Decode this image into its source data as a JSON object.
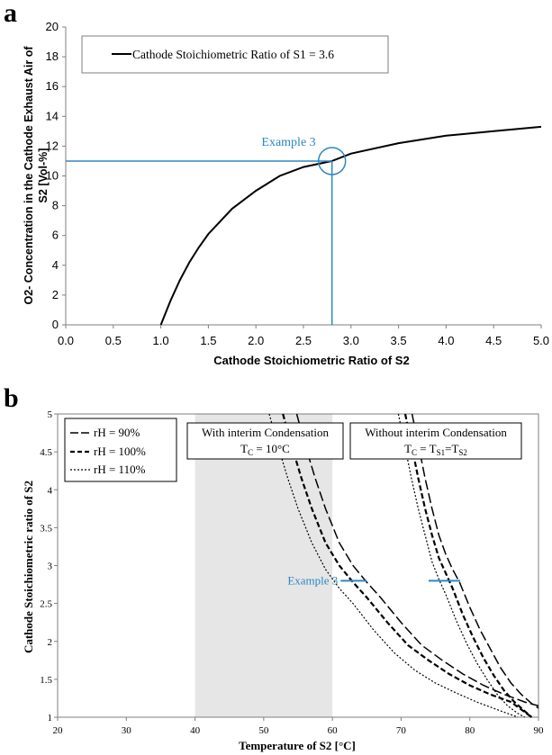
{
  "colors": {
    "curve": "#000000",
    "annotation": "#2e86c1",
    "shade": "#e6e6e6",
    "axis": "#7f7f7f"
  },
  "chart_data": [
    {
      "panel_letter": "a",
      "type": "line",
      "xlabel": "Cathode Stoichiometric Ratio of S2",
      "ylabel_lines": [
        "O2- Concentration in the Cathode Exhaust Air of",
        "S2 [Vol-%]"
      ],
      "xlim": [
        0,
        5
      ],
      "ylim": [
        0,
        20
      ],
      "xticks": [
        0,
        0.5,
        1,
        1.5,
        2,
        2.5,
        3,
        3.5,
        4,
        4.5,
        5
      ],
      "xtick_labels": [
        "0.0",
        "0.5",
        "1.0",
        "1.5",
        "2.0",
        "2.5",
        "3.0",
        "3.5",
        "4.0",
        "4.5",
        "5.0"
      ],
      "yticks": [
        0,
        2,
        4,
        6,
        8,
        10,
        12,
        14,
        16,
        18,
        20
      ],
      "ytick_labels": [
        "0",
        "2",
        "4",
        "6",
        "8",
        "10",
        "12",
        "14",
        "16",
        "18",
        "20"
      ],
      "grid": false,
      "legend_position": "top-left",
      "series": [
        {
          "name": "Cathode Stoichiometric Ratio of S1 = 3.6",
          "style": "solid",
          "x": [
            1.0,
            1.1,
            1.2,
            1.3,
            1.4,
            1.5,
            1.75,
            2.0,
            2.25,
            2.5,
            2.8,
            3.0,
            3.5,
            4.0,
            4.5,
            5.0
          ],
          "y": [
            0.0,
            1.6,
            3.0,
            4.2,
            5.2,
            6.1,
            7.8,
            9.0,
            10.0,
            10.6,
            11.0,
            11.5,
            12.2,
            12.7,
            13.0,
            13.3
          ]
        }
      ],
      "annotation": {
        "label": "Example 3",
        "x": 2.8,
        "y": 11.0
      }
    },
    {
      "panel_letter": "b",
      "type": "line",
      "xlabel": "Temperature of S2 [°C]",
      "ylabel": "Cathode Stoichiometric ratio of S2",
      "xlim": [
        20,
        90
      ],
      "ylim": [
        1,
        5
      ],
      "xticks": [
        20,
        30,
        40,
        50,
        60,
        70,
        80,
        90
      ],
      "xtick_labels": [
        "20",
        "30",
        "40",
        "50",
        "60",
        "70",
        "80",
        "90"
      ],
      "yticks": [
        1,
        1.5,
        2,
        2.5,
        3,
        3.5,
        4,
        4.5,
        5
      ],
      "ytick_labels": [
        "1",
        "1.5",
        "2",
        "2.5",
        "3",
        "3.5",
        "4",
        "4.5",
        "5"
      ],
      "grid": false,
      "legend_position": "top-left",
      "shaded_region": {
        "x": [
          40,
          60
        ]
      },
      "boxes": [
        {
          "line1": "With interim Condensation",
          "line2_main": "T",
          "line2_sub": "C",
          "line2_rest": " = 10°C"
        },
        {
          "line1": "Without interim Condensation",
          "line2_parts": [
            [
              "T",
              "C"
            ],
            [
              " = T",
              "S1"
            ],
            [
              "=T",
              "S2"
            ]
          ]
        }
      ],
      "series": [
        {
          "name": "rH = 90%",
          "style": "long-dash",
          "x": [
            54.8,
            56.0,
            57.5,
            59.0,
            61.0,
            63.0,
            65.0,
            67.0,
            70.0,
            73.0,
            76.0,
            79.0,
            82.0,
            85.0,
            88.0,
            90.0
          ],
          "y": [
            5.0,
            4.6,
            4.15,
            3.75,
            3.3,
            3.0,
            2.78,
            2.58,
            2.25,
            1.95,
            1.75,
            1.57,
            1.42,
            1.3,
            1.2,
            1.15
          ]
        },
        {
          "name": "rH = 100%",
          "style": "dash",
          "x": [
            52.8,
            54.0,
            55.5,
            57.0,
            59.0,
            61.0,
            63.0,
            65.0,
            68.0,
            71.0,
            74.0,
            77.0,
            80.0,
            83.0,
            86.0,
            89.0
          ],
          "y": [
            5.0,
            4.6,
            4.15,
            3.75,
            3.3,
            3.0,
            2.78,
            2.58,
            2.25,
            1.95,
            1.75,
            1.57,
            1.42,
            1.3,
            1.2,
            1.0
          ]
        },
        {
          "name": "rH = 110%",
          "style": "dot",
          "x": [
            50.8,
            52.0,
            53.5,
            55.0,
            57.0,
            59.0,
            61.0,
            63.0,
            66.0,
            69.0,
            72.0,
            75.0,
            78.0,
            81.0,
            84.0,
            87.0
          ],
          "y": [
            5.0,
            4.6,
            4.15,
            3.75,
            3.3,
            2.95,
            2.7,
            2.5,
            2.15,
            1.85,
            1.62,
            1.45,
            1.32,
            1.2,
            1.1,
            1.0
          ]
        },
        {
          "name": "",
          "style": "long-dash",
          "x": [
            71.6,
            72.5,
            73.5,
            74.5,
            75.5,
            76.5,
            77.5,
            78.5,
            80.0,
            81.5,
            83.0,
            84.5,
            86.0,
            87.5,
            89.0,
            90.0
          ],
          "y": [
            5.0,
            4.6,
            4.15,
            3.75,
            3.4,
            3.15,
            2.95,
            2.78,
            2.45,
            2.15,
            1.9,
            1.65,
            1.45,
            1.3,
            1.18,
            1.12
          ]
        },
        {
          "name": "",
          "style": "dash",
          "x": [
            70.6,
            71.5,
            72.5,
            73.5,
            74.5,
            75.5,
            76.5,
            77.5,
            79.0,
            80.5,
            82.0,
            83.5,
            85.0,
            86.5,
            88.0,
            89.0
          ],
          "y": [
            5.0,
            4.6,
            4.15,
            3.75,
            3.4,
            3.1,
            2.9,
            2.7,
            2.35,
            2.05,
            1.78,
            1.55,
            1.35,
            1.2,
            1.08,
            1.0
          ]
        },
        {
          "name": "",
          "style": "dot",
          "x": [
            69.6,
            70.5,
            71.5,
            72.5,
            73.5,
            74.5,
            75.5,
            76.5,
            78.0,
            79.5,
            81.0,
            82.5,
            84.0,
            85.5,
            87.0,
            88.0
          ],
          "y": [
            5.0,
            4.6,
            4.15,
            3.75,
            3.4,
            3.05,
            2.82,
            2.62,
            2.28,
            1.98,
            1.72,
            1.5,
            1.3,
            1.15,
            1.05,
            1.0
          ]
        }
      ],
      "annotation": {
        "label": "Example 3",
        "y": 2.8,
        "segments": [
          [
            61.2,
            65.0
          ],
          [
            74.0,
            78.6
          ]
        ]
      }
    }
  ]
}
